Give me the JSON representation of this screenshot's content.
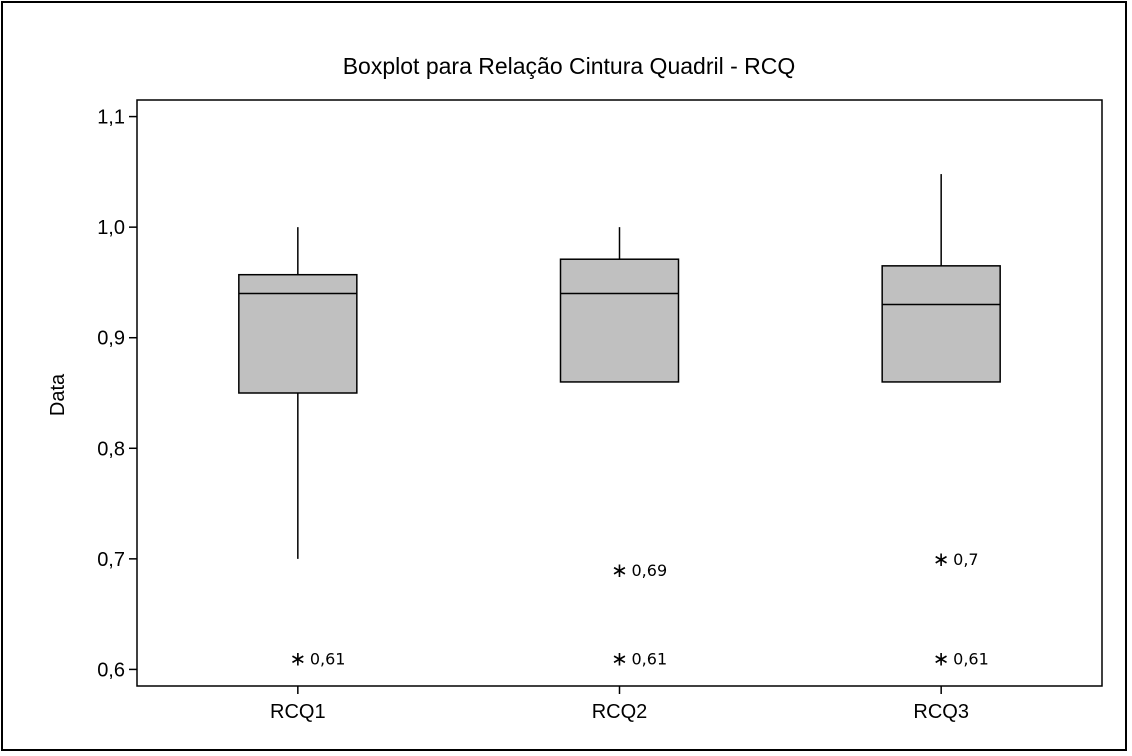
{
  "chart_data": {
    "type": "boxplot",
    "title": "Boxplot para Relação Cintura Quadril - RCQ",
    "xlabel": "",
    "ylabel": "Data",
    "ylim": [
      0.585,
      1.115
    ],
    "yticks": [
      0.6,
      0.7,
      0.8,
      0.9,
      1.0,
      1.1
    ],
    "ytick_labels": [
      "0,6",
      "0,7",
      "0,8",
      "0,9",
      "1,0",
      "1,1"
    ],
    "categories": [
      "RCQ1",
      "RCQ2",
      "RCQ3"
    ],
    "grid": false,
    "box_color": "#c0c0c0",
    "boxes": [
      {
        "name": "RCQ1",
        "whisker_low": 0.7,
        "q1": 0.85,
        "median": 0.94,
        "q3": 0.957,
        "whisker_high": 1.0,
        "outliers": [
          {
            "value": 0.61,
            "label": "0,61"
          }
        ]
      },
      {
        "name": "RCQ2",
        "whisker_low": 0.86,
        "q1": 0.86,
        "median": 0.94,
        "q3": 0.971,
        "whisker_high": 1.0,
        "outliers": [
          {
            "value": 0.69,
            "label": "0,69"
          },
          {
            "value": 0.61,
            "label": "0,61"
          }
        ]
      },
      {
        "name": "RCQ3",
        "whisker_low": 0.86,
        "q1": 0.86,
        "median": 0.93,
        "q3": 0.965,
        "whisker_high": 1.048,
        "outliers": [
          {
            "value": 0.7,
            "label": "0,7"
          },
          {
            "value": 0.61,
            "label": "0,61"
          }
        ]
      }
    ]
  }
}
